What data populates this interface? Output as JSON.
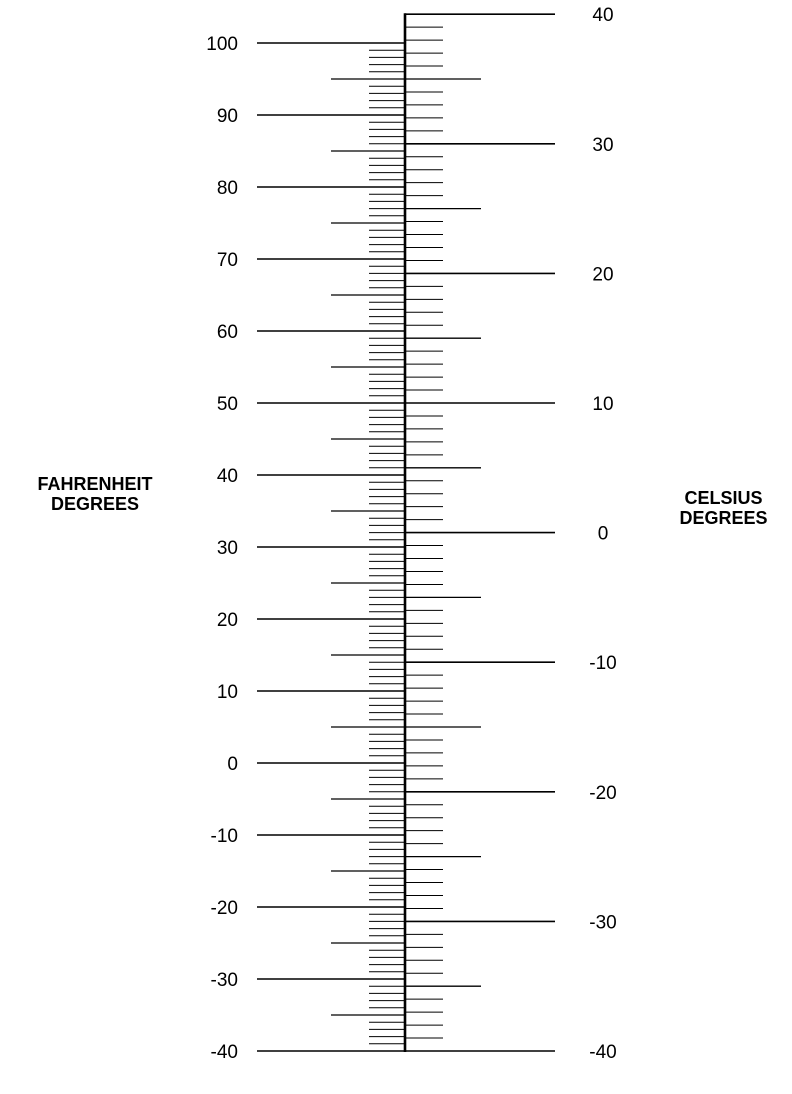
{
  "fahrenheit": {
    "title_line1": "FAHRENHEIT",
    "title_line2": "DEGREES",
    "range": [
      -40,
      100
    ],
    "major_step": 10,
    "labels": [
      "100",
      "90",
      "80",
      "70",
      "60",
      "50",
      "40",
      "30",
      "20",
      "10",
      "0",
      "-10",
      "-20",
      "-30",
      "-40"
    ]
  },
  "celsius": {
    "title_line1": "CELSIUS",
    "title_line2": "DEGREES",
    "range": [
      -40,
      40
    ],
    "major_step": 10,
    "labels": [
      "40",
      "30",
      "20",
      "10",
      "0",
      "-10",
      "-20",
      "-30",
      "-40"
    ]
  },
  "colors": {
    "ink": "#000000",
    "paper": "#ffffff"
  }
}
